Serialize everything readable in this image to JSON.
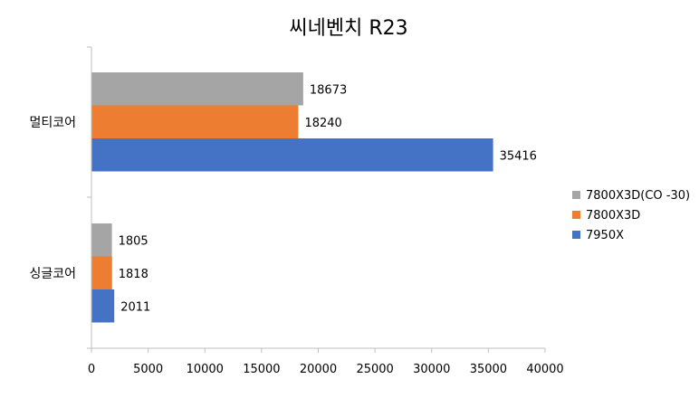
{
  "chart_data": {
    "type": "bar",
    "orientation": "horizontal",
    "title": "씨네벤치 R23",
    "categories": [
      "멀티코어",
      "싱글코어"
    ],
    "series": [
      {
        "name": "7800X3D(CO -30)",
        "color": "#A5A5A5",
        "values": [
          18673,
          1805
        ]
      },
      {
        "name": "7800X3D",
        "color": "#ED7D31",
        "values": [
          18240,
          1818
        ]
      },
      {
        "name": "7950X",
        "color": "#4472C4",
        "values": [
          35416,
          2011
        ]
      }
    ],
    "xlim": [
      0,
      40000
    ],
    "xticks": [
      0,
      5000,
      10000,
      15000,
      20000,
      25000,
      30000,
      35000,
      40000
    ],
    "grid": false,
    "legend_position": "right",
    "data_labels": true
  }
}
